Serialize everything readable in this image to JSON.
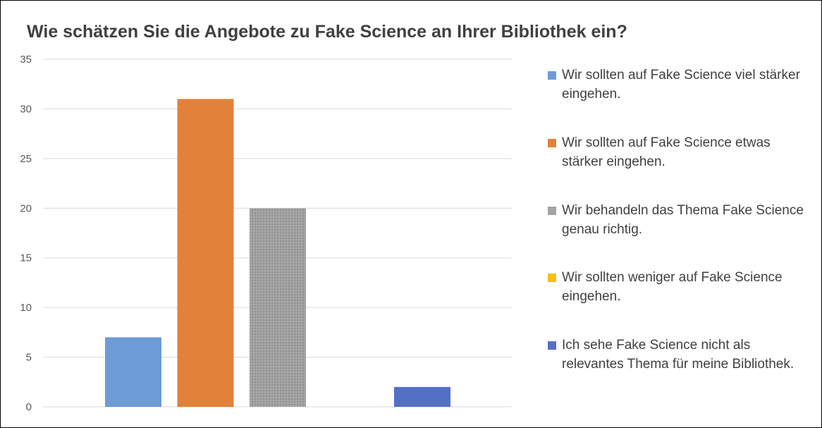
{
  "chart_data": {
    "type": "bar",
    "title": "Wie schätzen Sie die Angebote zu Fake Science an Ihrer Bibliothek ein?",
    "xlabel": "",
    "ylabel": "",
    "ylim": [
      0,
      35
    ],
    "yticks": [
      0,
      5,
      10,
      15,
      20,
      25,
      30,
      35
    ],
    "grid": true,
    "legend_position": "right",
    "series": [
      {
        "name": "Wir sollten auf Fake Science viel stärker eingehen.",
        "value": 7,
        "color": "#6d9bd6"
      },
      {
        "name": "Wir sollten auf Fake Science etwas stärker eingehen.",
        "value": 31,
        "color": "#e2823a"
      },
      {
        "name": "Wir behandeln das Thema Fake Science genau richtig.",
        "value": 20,
        "color": "#a5a5a5"
      },
      {
        "name": "Wir sollten weniger auf Fake Science eingehen.",
        "value": 0,
        "color": "#f4c10b"
      },
      {
        "name": "Ich sehe Fake Science nicht als relevantes Thema für meine Bibliothek.",
        "value": 2,
        "color": "#5470c6"
      }
    ]
  }
}
